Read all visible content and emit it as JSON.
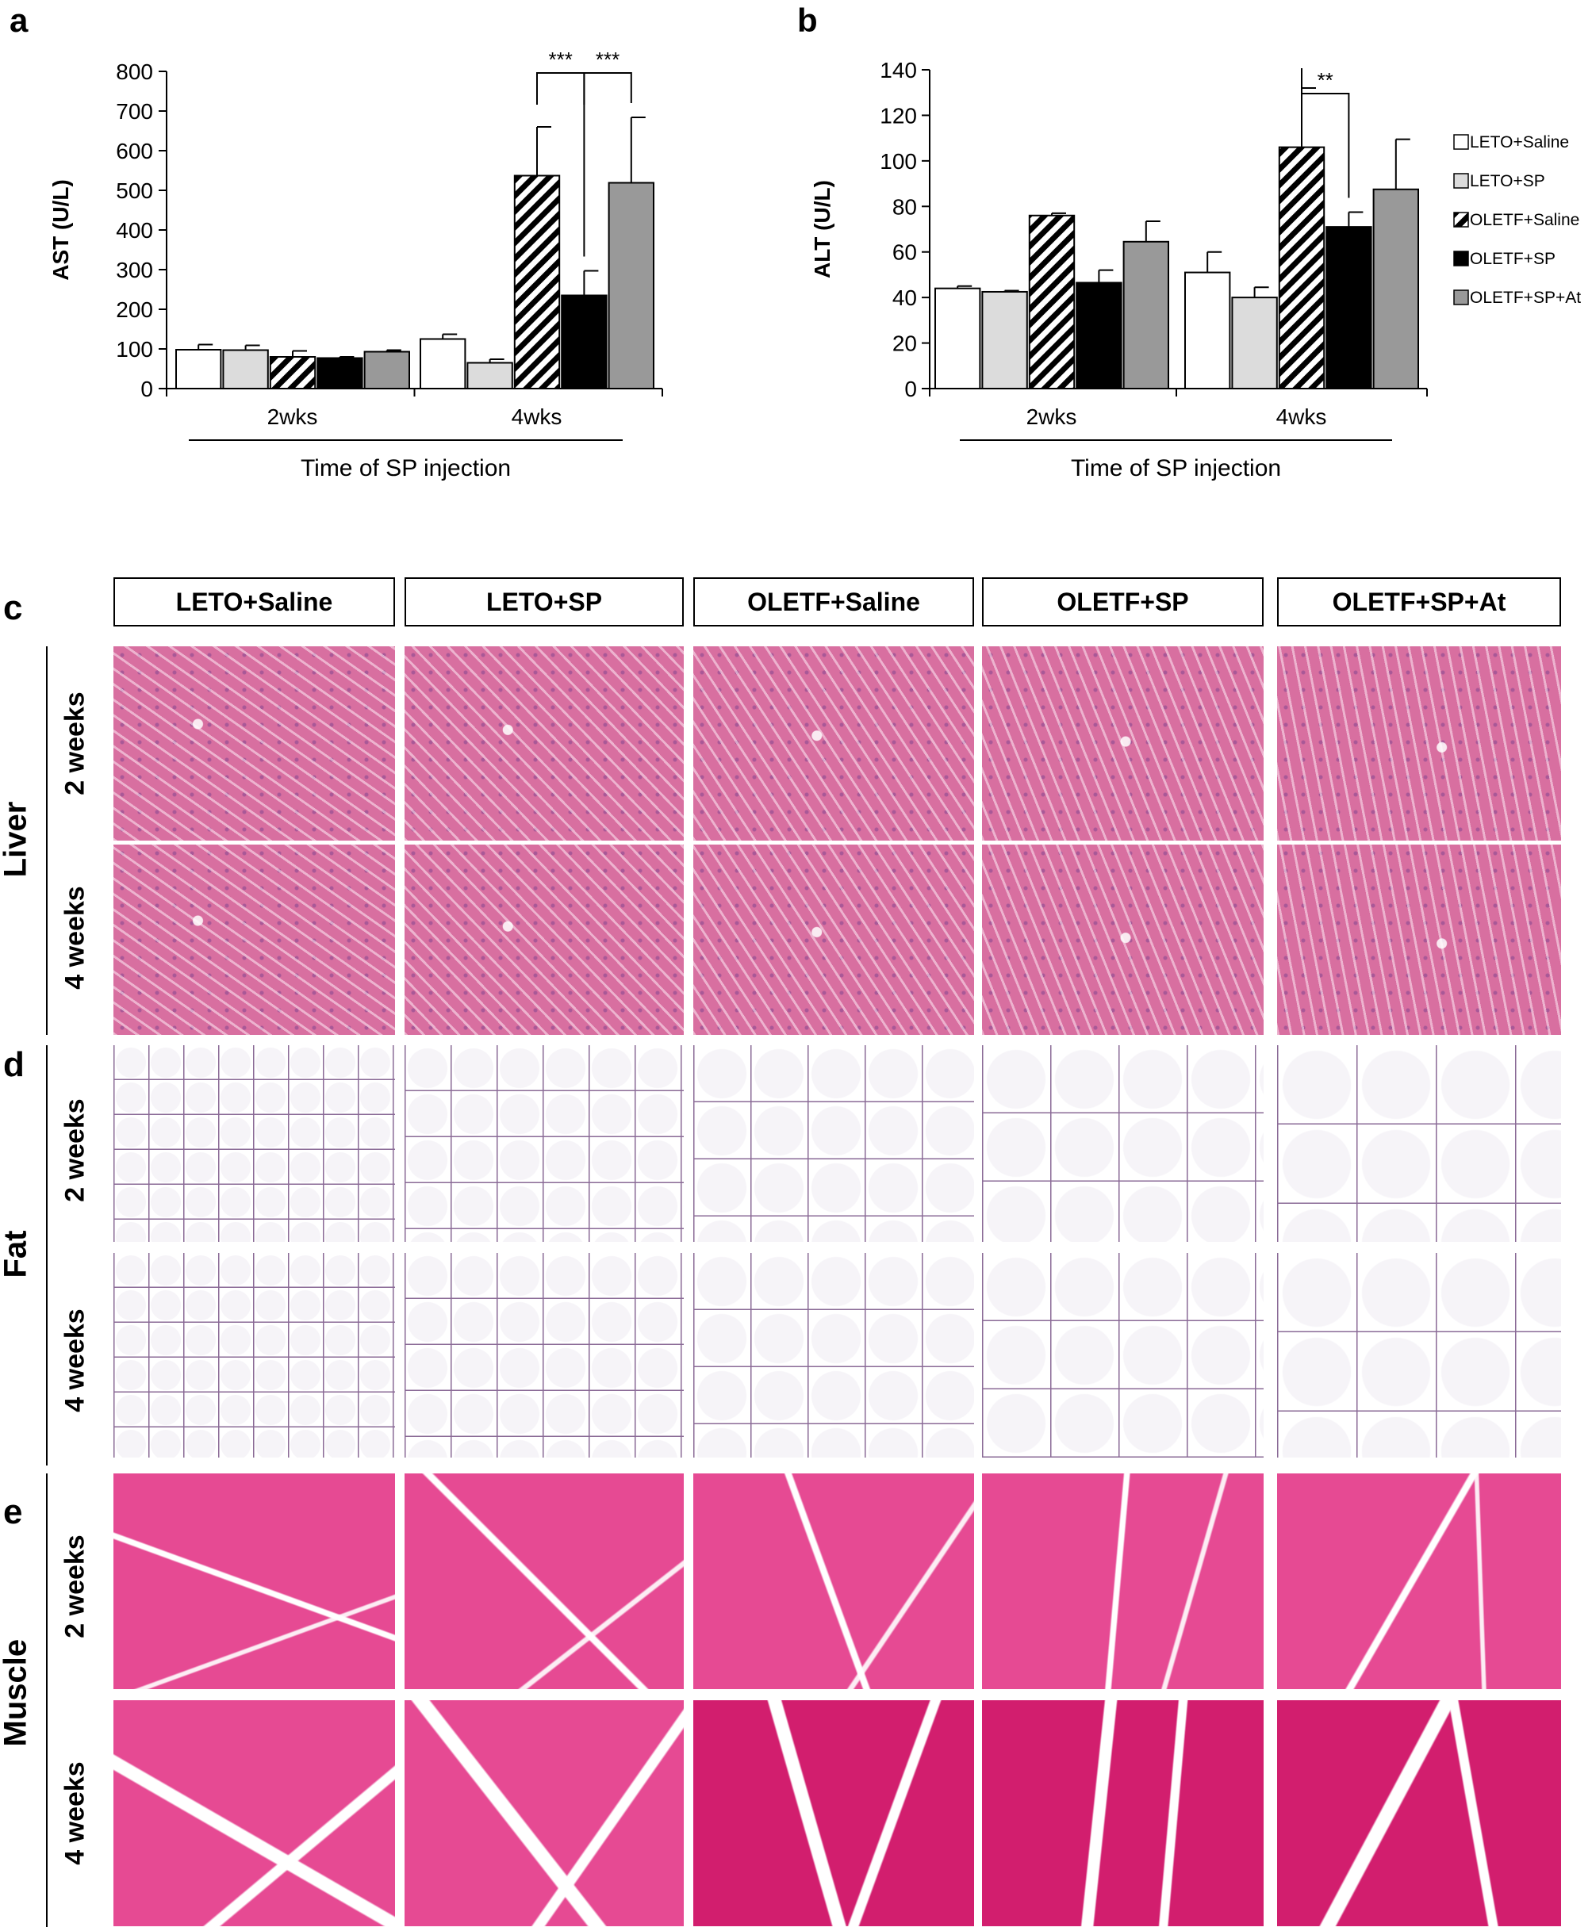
{
  "colors": {
    "white_fill": "#ffffff",
    "light_gray": "#dcdcdc",
    "black": "#000000",
    "mid_gray": "#999999",
    "liver_pink": "#d86fa0",
    "fat_bg": "#f6f4f8",
    "fat_wall": "#8a6a96",
    "muscle_pink": "#e64a93",
    "muscle_deep": "#d21e6e"
  },
  "chart_data": [
    {
      "panel_label": "a",
      "type": "bar",
      "ylabel": "AST (U/L)",
      "xlabel": "Time of SP injection",
      "ylim": [
        0,
        800
      ],
      "yticks": [
        "0",
        "100",
        "200",
        "300",
        "400",
        "500",
        "600",
        "700",
        "800"
      ],
      "categories": [
        "2wks",
        "4wks"
      ],
      "series": [
        {
          "name": "LETO+Saline",
          "pattern": "white",
          "values": [
            98,
            125
          ],
          "errors": [
            13,
            12
          ]
        },
        {
          "name": "LETO+SP",
          "pattern": "lightgray",
          "values": [
            97,
            65
          ],
          "errors": [
            12,
            9
          ]
        },
        {
          "name": "OLETF+Saline",
          "pattern": "hatch",
          "values": [
            80,
            537
          ],
          "errors": [
            15,
            123
          ]
        },
        {
          "name": "OLETF+SP",
          "pattern": "black",
          "values": [
            77,
            235
          ],
          "errors": [
            3,
            62
          ]
        },
        {
          "name": "OLETF+SP+At",
          "pattern": "darkgray",
          "values": [
            93,
            519
          ],
          "errors": [
            4,
            165
          ]
        }
      ],
      "significance": [
        {
          "category": "4wks",
          "from": 2,
          "to": 3,
          "label": "***"
        },
        {
          "category": "4wks",
          "from": 3,
          "to": 4,
          "label": "***"
        }
      ]
    },
    {
      "panel_label": "b",
      "type": "bar",
      "ylabel": "ALT (U/L)",
      "xlabel": "Time of SP injection",
      "ylim": [
        0,
        140
      ],
      "yticks": [
        "0",
        "20",
        "40",
        "60",
        "80",
        "100",
        "120",
        "140"
      ],
      "categories": [
        "2wks",
        "4wks"
      ],
      "series": [
        {
          "name": "LETO+Saline",
          "pattern": "white",
          "values": [
            44,
            51
          ],
          "errors": [
            1,
            9
          ]
        },
        {
          "name": "LETO+SP",
          "pattern": "lightgray",
          "values": [
            42.5,
            40
          ],
          "errors": [
            0.5,
            4.5
          ]
        },
        {
          "name": "OLETF+Saline",
          "pattern": "hatch",
          "values": [
            76,
            106
          ],
          "errors": [
            1,
            26
          ]
        },
        {
          "name": "OLETF+SP",
          "pattern": "black",
          "values": [
            46.5,
            71
          ],
          "errors": [
            5.5,
            6.5
          ]
        },
        {
          "name": "OLETF+SP+At",
          "pattern": "darkgray",
          "values": [
            64.5,
            87.5
          ],
          "errors": [
            9,
            22
          ]
        }
      ],
      "significance": [
        {
          "category": "4wks",
          "from": 2,
          "to": 3,
          "label": "**"
        }
      ],
      "legend_placement": "right"
    }
  ],
  "histology": {
    "panel_labels": {
      "c": "c",
      "d": "d",
      "e": "e"
    },
    "column_headers": [
      "LETO+Saline",
      "LETO+SP",
      "OLETF+Saline",
      "OLETF+SP",
      "OLETF+SP+At"
    ],
    "tissues": [
      {
        "label": "Liver",
        "rows": [
          "2 weeks",
          "4 weeks"
        ]
      },
      {
        "label": "Fat",
        "rows": [
          "2 weeks",
          "4 weeks"
        ]
      },
      {
        "label": "Muscle",
        "rows": [
          "2 weeks",
          "4 weeks"
        ]
      }
    ]
  }
}
